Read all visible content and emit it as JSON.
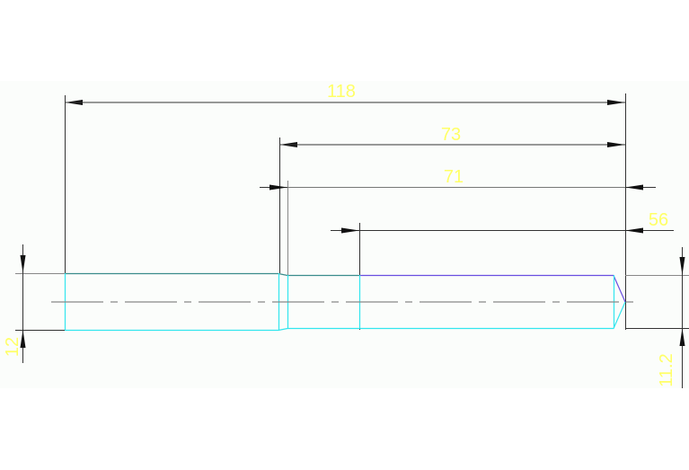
{
  "drawing": {
    "dimensions": {
      "overall_length": "118",
      "length_73": "73",
      "length_71": "71",
      "length_56": "56",
      "diameter_left": "12",
      "diameter_right": "11.2"
    },
    "colors": {
      "background_band": "#fbfdfb",
      "dimension_line": "#222222",
      "dimension_text": "#ffff66",
      "outline_cyan": "#33e6ee",
      "outline_teal": "#3a8c8c",
      "outline_purple": "#6a4ee0",
      "centerline": "#888888"
    }
  }
}
